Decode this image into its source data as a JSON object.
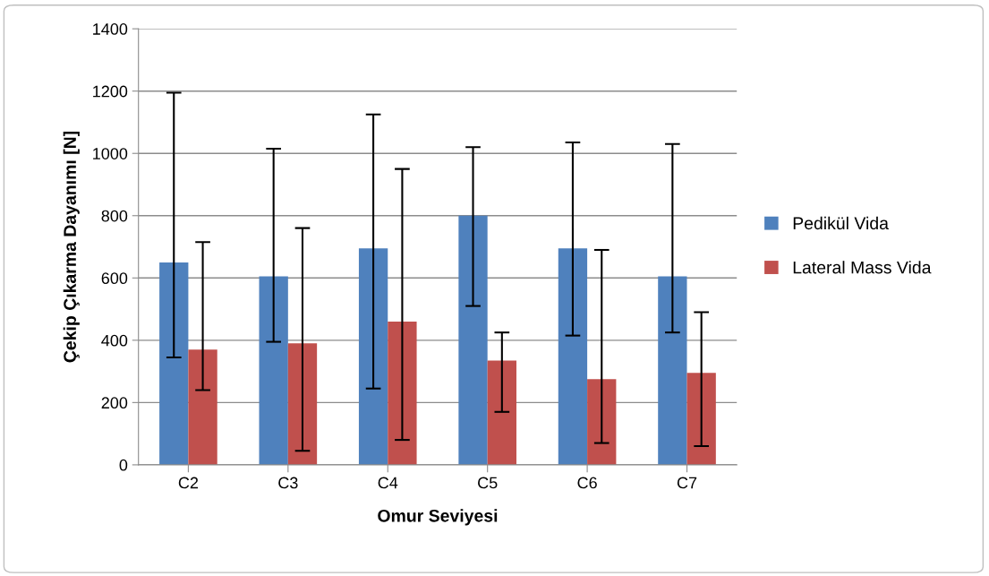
{
  "chart_data": {
    "type": "bar",
    "xlabel": "Omur Seviyesi",
    "ylabel": "Çekip Çıkarma Dayanımı [N]",
    "categories": [
      "C2",
      "C3",
      "C4",
      "C5",
      "C6",
      "C7"
    ],
    "series": [
      {
        "name": "Pedikül Vida",
        "color": "#4f81bd",
        "values": [
          650,
          605,
          695,
          800,
          695,
          605
        ],
        "errors": [
          [
            345,
            1195
          ],
          [
            395,
            1015
          ],
          [
            245,
            1125
          ],
          [
            510,
            1020
          ],
          [
            415,
            1035
          ],
          [
            425,
            1030
          ]
        ]
      },
      {
        "name": "Lateral Mass Vida",
        "color": "#c0504d",
        "values": [
          370,
          390,
          460,
          335,
          275,
          295
        ],
        "errors": [
          [
            240,
            715
          ],
          [
            45,
            760
          ],
          [
            80,
            950
          ],
          [
            170,
            425
          ],
          [
            70,
            690
          ],
          [
            60,
            490
          ]
        ]
      }
    ],
    "ylim": [
      0,
      1400
    ],
    "yticks": [
      0,
      200,
      400,
      600,
      800,
      1000,
      1200,
      1400
    ],
    "grid": "y",
    "legend": "right"
  }
}
